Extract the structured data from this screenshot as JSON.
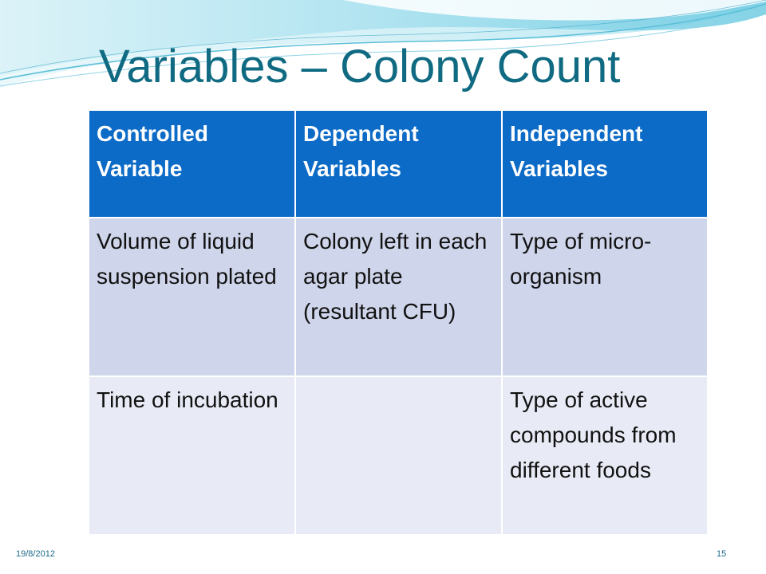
{
  "slide": {
    "title": "Variables – Colony Count",
    "footer_date": "19/8/2012",
    "page_number": "15"
  },
  "table": {
    "headers": [
      "Controlled Variable",
      "Dependent Variables",
      "Independent Variables"
    ],
    "rows": [
      [
        "Volume of liquid suspension plated",
        "Colony left in each agar plate (resultant CFU)",
        "Type of micro-organism"
      ],
      [
        "Time of incubation",
        "",
        "Type of active compounds from different foods"
      ]
    ]
  },
  "colors": {
    "title": "#0f6a82",
    "header_bg": "#0c6bc6",
    "row1_bg": "#cfd5ea",
    "row2_bg": "#e8ebf5"
  }
}
